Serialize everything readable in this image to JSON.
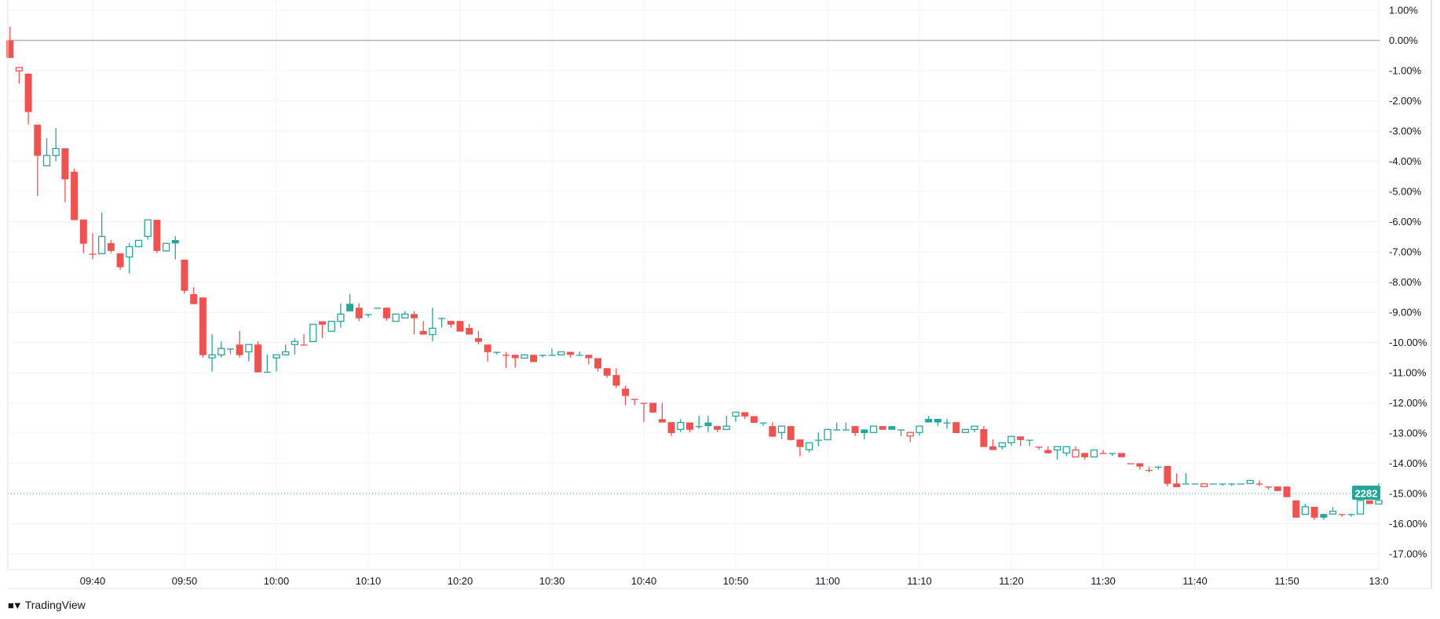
{
  "brand": {
    "name": "TradingView"
  },
  "colors": {
    "up": "#26a69a",
    "down": "#ef5350",
    "grid": "#f0f3fa",
    "zero_line": "#b2b5be",
    "last_price": "#26a69a"
  },
  "last_price": {
    "label": "2282",
    "pct": -15.0
  },
  "chart_data": {
    "type": "candlestick",
    "title": "",
    "xlabel": "",
    "ylabel": "",
    "ylim": [
      -17.6,
      1.3
    ],
    "y_scale": "percent",
    "grid": true,
    "y_ticks": [
      1,
      0,
      -1,
      -2,
      -3,
      -4,
      -5,
      -6,
      -7,
      -8,
      -9,
      -10,
      -11,
      -12,
      -13,
      -14,
      -15,
      -16,
      -17
    ],
    "y_tick_labels": [
      "1.00%",
      "0.00%",
      "-1.00%",
      "-2.00%",
      "-3.00%",
      "-4.00%",
      "-5.00%",
      "-6.00%",
      "-7.00%",
      "-8.00%",
      "-9.00%",
      "-10.00%",
      "-11.00%",
      "-12.00%",
      "-13.00%",
      "-14.00%",
      "-15.00%",
      "-16.00%",
      "-17.00%"
    ],
    "x_ticks": [
      "09:40",
      "09:50",
      "10:00",
      "10:10",
      "10:20",
      "10:30",
      "10:40",
      "10:50",
      "11:00",
      "11:10",
      "11:20",
      "11:30",
      "11:40",
      "11:50",
      "13:0"
    ],
    "ohlc_columns": [
      "time",
      "open",
      "high",
      "low",
      "close"
    ],
    "candles": [
      [
        "09:31",
        0,
        0.45,
        -0.58,
        -0.58
      ],
      [
        "09:32",
        -1.01,
        -0.9,
        -1.43,
        -0.9
      ],
      [
        "09:33",
        -1.1,
        -1.1,
        -2.78,
        -2.37
      ],
      [
        "09:34",
        -2.79,
        -2.79,
        -5.15,
        -3.82
      ],
      [
        "09:35",
        -4.15,
        -3.23,
        -4.15,
        -3.81
      ],
      [
        "09:36",
        -3.81,
        -2.9,
        -4.0,
        -3.58
      ],
      [
        "09:37",
        -3.57,
        -3.57,
        -5.36,
        -4.6
      ],
      [
        "09:38",
        -4.35,
        -4.25,
        -5.95,
        -5.95
      ],
      [
        "09:39",
        -5.93,
        -5.93,
        -7.04,
        -6.73
      ],
      [
        "09:40",
        -7.06,
        -6.38,
        -7.25,
        -7.06
      ],
      [
        "09:41",
        -7.06,
        -5.7,
        -7.06,
        -6.49
      ],
      [
        "09:42",
        -6.71,
        -6.61,
        -7.04,
        -6.97
      ],
      [
        "09:43",
        -7.05,
        -7.05,
        -7.59,
        -7.51
      ],
      [
        "09:44",
        -7.17,
        -6.71,
        -7.72,
        -6.83
      ],
      [
        "09:45",
        -6.83,
        -6.62,
        -6.83,
        -6.62
      ],
      [
        "09:46",
        -6.49,
        -5.94,
        -6.6,
        -5.94
      ],
      [
        "09:47",
        -5.94,
        -5.94,
        -7.04,
        -6.97
      ],
      [
        "09:48",
        -6.97,
        -6.72,
        -6.97,
        -6.72
      ],
      [
        "09:49",
        -6.61,
        -6.48,
        -7.25,
        -6.72
      ],
      [
        "09:50",
        -7.26,
        -7.26,
        -8.39,
        -8.29
      ],
      [
        "09:51",
        -8.4,
        -8.17,
        -8.73,
        -8.73
      ],
      [
        "09:52",
        -8.51,
        -8.51,
        -10.5,
        -10.42
      ],
      [
        "09:53",
        -10.51,
        -9.73,
        -10.96,
        -10.41
      ],
      [
        "09:54",
        -10.41,
        -9.96,
        -10.5,
        -10.2
      ],
      [
        "09:55",
        -10.2,
        -10.2,
        -10.39,
        -10.2
      ],
      [
        "09:56",
        -10.07,
        -9.62,
        -10.5,
        -10.42
      ],
      [
        "09:57",
        -10.31,
        -10.07,
        -10.63,
        -10.07
      ],
      [
        "09:58",
        -10.07,
        -9.96,
        -10.99,
        -10.99
      ],
      [
        "09:59",
        -10.97,
        -10.4,
        -10.97,
        -10.97
      ],
      [
        "10:00",
        -10.51,
        -10.41,
        -10.96,
        -10.41
      ],
      [
        "10:01",
        -10.41,
        -10.07,
        -10.41,
        -10.31
      ],
      [
        "10:02",
        -10.07,
        -9.86,
        -10.4,
        -9.97
      ],
      [
        "10:03",
        -10.07,
        -9.73,
        -10.07,
        -10.07
      ],
      [
        "10:04",
        -9.97,
        -9.4,
        -9.97,
        -9.4
      ],
      [
        "10:05",
        -9.3,
        -9.3,
        -9.85,
        -9.41
      ],
      [
        "10:06",
        -9.63,
        -9.3,
        -9.63,
        -9.3
      ],
      [
        "10:07",
        -9.3,
        -8.71,
        -9.51,
        -9.06
      ],
      [
        "10:08",
        -8.72,
        -8.4,
        -8.97,
        -8.97
      ],
      [
        "10:09",
        -8.85,
        -8.71,
        -9.29,
        -9.2
      ],
      [
        "10:10",
        -9.06,
        -9.06,
        -9.17,
        -9.06
      ],
      [
        "10:11",
        -8.85,
        -8.85,
        -8.85,
        -8.85
      ],
      [
        "10:12",
        -8.85,
        -8.85,
        -9.28,
        -9.2
      ],
      [
        "10:13",
        -9.3,
        -9.06,
        -9.3,
        -9.06
      ],
      [
        "10:14",
        -9.19,
        -8.96,
        -9.19,
        -9.06
      ],
      [
        "10:15",
        -9.06,
        -8.96,
        -9.73,
        -9.2
      ],
      [
        "10:16",
        -9.62,
        -9.29,
        -9.74,
        -9.74
      ],
      [
        "10:17",
        -9.74,
        -8.85,
        -9.96,
        -9.53
      ],
      [
        "10:18",
        -9.19,
        -9.19,
        -9.51,
        -9.19
      ],
      [
        "10:19",
        -9.29,
        -9.29,
        -9.51,
        -9.41
      ],
      [
        "10:20",
        -9.29,
        -9.29,
        -9.64,
        -9.64
      ],
      [
        "10:21",
        -9.52,
        -9.39,
        -9.74,
        -9.74
      ],
      [
        "10:22",
        -9.86,
        -9.62,
        -10.06,
        -9.98
      ],
      [
        "10:23",
        -10.07,
        -10.07,
        -10.63,
        -10.32
      ],
      [
        "10:24",
        -10.31,
        -10.31,
        -10.4,
        -10.31
      ],
      [
        "10:25",
        -10.41,
        -10.31,
        -10.84,
        -10.41
      ],
      [
        "10:26",
        -10.41,
        -10.41,
        -10.84,
        -10.52
      ],
      [
        "10:27",
        -10.52,
        -10.41,
        -10.52,
        -10.41
      ],
      [
        "10:28",
        -10.41,
        -10.41,
        -10.65,
        -10.65
      ],
      [
        "10:29",
        -10.41,
        -10.41,
        -10.5,
        -10.41
      ],
      [
        "10:30",
        -10.41,
        -10.2,
        -10.41,
        -10.41
      ],
      [
        "10:31",
        -10.41,
        -10.31,
        -10.41,
        -10.31
      ],
      [
        "10:32",
        -10.31,
        -10.31,
        -10.5,
        -10.41
      ],
      [
        "10:33",
        -10.41,
        -10.3,
        -10.41,
        -10.41
      ],
      [
        "10:34",
        -10.41,
        -10.41,
        -10.73,
        -10.52
      ],
      [
        "10:35",
        -10.52,
        -10.52,
        -10.96,
        -10.86
      ],
      [
        "10:36",
        -10.85,
        -10.85,
        -11.17,
        -11.1
      ],
      [
        "10:37",
        -11.08,
        -10.85,
        -11.51,
        -11.43
      ],
      [
        "10:38",
        -11.53,
        -11.43,
        -12.08,
        -11.77
      ],
      [
        "10:39",
        -11.87,
        -11.87,
        -12.08,
        -11.87
      ],
      [
        "10:40",
        -12.0,
        -12.0,
        -12.63,
        -12.0
      ],
      [
        "10:41",
        -12.0,
        -12.0,
        -12.32,
        -12.32
      ],
      [
        "10:42",
        -12.54,
        -12.0,
        -12.65,
        -12.65
      ],
      [
        "10:43",
        -12.64,
        -12.64,
        -13.1,
        -13.0
      ],
      [
        "10:44",
        -12.88,
        -12.54,
        -12.97,
        -12.65
      ],
      [
        "10:45",
        -12.65,
        -12.65,
        -12.97,
        -12.89
      ],
      [
        "10:46",
        -12.77,
        -12.43,
        -12.86,
        -12.77
      ],
      [
        "10:47",
        -12.65,
        -12.43,
        -12.97,
        -12.77
      ],
      [
        "10:48",
        -12.77,
        -12.77,
        -12.97,
        -12.89
      ],
      [
        "10:49",
        -12.88,
        -12.43,
        -12.88,
        -12.77
      ],
      [
        "10:50",
        -12.44,
        -12.31,
        -12.63,
        -12.31
      ],
      [
        "10:51",
        -12.31,
        -12.31,
        -12.53,
        -12.45
      ],
      [
        "10:52",
        -12.44,
        -12.44,
        -12.66,
        -12.66
      ],
      [
        "10:53",
        -12.65,
        -12.65,
        -12.76,
        -12.65
      ],
      [
        "10:54",
        -12.77,
        -12.64,
        -13.12,
        -13.12
      ],
      [
        "10:55",
        -12.98,
        -12.77,
        -13.2,
        -12.77
      ],
      [
        "10:56",
        -12.77,
        -12.77,
        -13.23,
        -13.23
      ],
      [
        "10:57",
        -13.21,
        -13.21,
        -13.77,
        -13.46
      ],
      [
        "10:58",
        -13.55,
        -13.32,
        -13.64,
        -13.32
      ],
      [
        "10:59",
        -13.22,
        -12.98,
        -13.44,
        -13.22
      ],
      [
        "11:00",
        -13.22,
        -12.88,
        -13.22,
        -12.88
      ],
      [
        "11:01",
        -12.88,
        -12.65,
        -12.88,
        -12.88
      ],
      [
        "11:02",
        -12.88,
        -12.65,
        -12.88,
        -12.88
      ],
      [
        "11:03",
        -12.77,
        -12.77,
        -13.1,
        -13.0
      ],
      [
        "11:04",
        -12.88,
        -12.88,
        -13.21,
        -13.0
      ],
      [
        "11:05",
        -12.98,
        -12.77,
        -12.98,
        -12.77
      ],
      [
        "11:06",
        -12.77,
        -12.77,
        -12.89,
        -12.89
      ],
      [
        "11:07",
        -12.77,
        -12.77,
        -12.89,
        -12.89
      ],
      [
        "11:08",
        -12.88,
        -12.88,
        -13.1,
        -12.88
      ],
      [
        "11:09",
        -13.1,
        -12.98,
        -13.3,
        -12.98
      ],
      [
        "11:10",
        -12.98,
        -12.77,
        -13.09,
        -12.77
      ],
      [
        "11:11",
        -12.53,
        -12.43,
        -12.65,
        -12.65
      ],
      [
        "11:12",
        -12.53,
        -12.53,
        -12.76,
        -12.65
      ],
      [
        "11:13",
        -12.65,
        -12.53,
        -12.86,
        -12.65
      ],
      [
        "11:14",
        -12.64,
        -12.64,
        -13.0,
        -13.0
      ],
      [
        "11:15",
        -12.98,
        -12.88,
        -12.98,
        -12.88
      ],
      [
        "11:16",
        -12.88,
        -12.77,
        -12.97,
        -12.77
      ],
      [
        "11:17",
        -12.87,
        -12.77,
        -13.46,
        -13.46
      ],
      [
        "11:18",
        -13.44,
        -13.21,
        -13.56,
        -13.56
      ],
      [
        "11:19",
        -13.45,
        -13.32,
        -13.54,
        -13.32
      ],
      [
        "11:20",
        -13.32,
        -13.11,
        -13.43,
        -13.11
      ],
      [
        "11:21",
        -13.11,
        -13.11,
        -13.43,
        -13.23
      ],
      [
        "11:22",
        -13.22,
        -13.22,
        -13.43,
        -13.22
      ],
      [
        "11:23",
        -13.45,
        -13.45,
        -13.55,
        -13.45
      ],
      [
        "11:24",
        -13.56,
        -13.44,
        -13.67,
        -13.67
      ],
      [
        "11:25",
        -13.56,
        -13.45,
        -13.88,
        -13.45
      ],
      [
        "11:26",
        -13.66,
        -13.45,
        -13.76,
        -13.45
      ],
      [
        "11:27",
        -13.79,
        -13.44,
        -13.79,
        -13.56
      ],
      [
        "11:28",
        -13.66,
        -13.66,
        -13.88,
        -13.8
      ],
      [
        "11:29",
        -13.79,
        -13.56,
        -13.79,
        -13.56
      ],
      [
        "11:30",
        -13.66,
        -13.56,
        -13.66,
        -13.66
      ],
      [
        "11:31",
        -13.66,
        -13.66,
        -13.76,
        -13.66
      ],
      [
        "11:32",
        -13.66,
        -13.66,
        -13.8,
        -13.8
      ],
      [
        "11:33",
        -14.0,
        -14.0,
        -14.0,
        -14.0
      ],
      [
        "11:34",
        -14.0,
        -14.0,
        -14.21,
        -14.11
      ],
      [
        "11:35",
        -14.22,
        -14.11,
        -14.3,
        -14.22
      ],
      [
        "11:36",
        -14.11,
        -14.11,
        -14.21,
        -14.11
      ],
      [
        "11:37",
        -14.09,
        -14.09,
        -14.76,
        -14.68
      ],
      [
        "11:38",
        -14.67,
        -14.33,
        -14.79,
        -14.79
      ],
      [
        "11:39",
        -14.67,
        -14.33,
        -14.67,
        -14.67
      ],
      [
        "11:40",
        -14.67,
        -14.67,
        -14.67,
        -14.67
      ],
      [
        "11:41",
        -14.77,
        -14.68,
        -14.77,
        -14.68
      ],
      [
        "11:42",
        -14.67,
        -14.67,
        -14.67,
        -14.67
      ],
      [
        "11:43",
        -14.67,
        -14.67,
        -14.75,
        -14.67
      ],
      [
        "11:44",
        -14.67,
        -14.67,
        -14.75,
        -14.67
      ],
      [
        "11:45",
        -14.67,
        -14.67,
        -14.67,
        -14.67
      ],
      [
        "11:46",
        -14.67,
        -14.57,
        -14.67,
        -14.57
      ],
      [
        "11:47",
        -14.67,
        -14.57,
        -14.76,
        -14.67
      ],
      [
        "11:48",
        -14.77,
        -14.77,
        -14.88,
        -14.77
      ],
      [
        "11:49",
        -14.77,
        -14.77,
        -14.92,
        -14.92
      ],
      [
        "11:50",
        -14.77,
        -14.77,
        -15.12,
        -15.12
      ],
      [
        "11:51",
        -15.23,
        -15.23,
        -15.8,
        -15.8
      ],
      [
        "11:52",
        -15.69,
        -15.34,
        -15.69,
        -15.44
      ],
      [
        "11:53",
        -15.44,
        -15.44,
        -15.87,
        -15.8
      ],
      [
        "11:54",
        -15.68,
        -15.68,
        -15.87,
        -15.8
      ],
      [
        "11:55",
        -15.68,
        -15.45,
        -15.68,
        -15.59
      ],
      [
        "11:56",
        -15.68,
        -15.68,
        -15.77,
        -15.68
      ],
      [
        "11:57",
        -15.68,
        -15.68,
        -15.77,
        -15.68
      ],
      [
        "11:58",
        -15.68,
        -15.23,
        -15.68,
        -15.23
      ],
      [
        "11:59",
        -15.23,
        -15.23,
        -15.35,
        -15.35
      ],
      [
        "13:00",
        -15.35,
        -14.66,
        -15.35,
        -15.23
      ]
    ]
  }
}
